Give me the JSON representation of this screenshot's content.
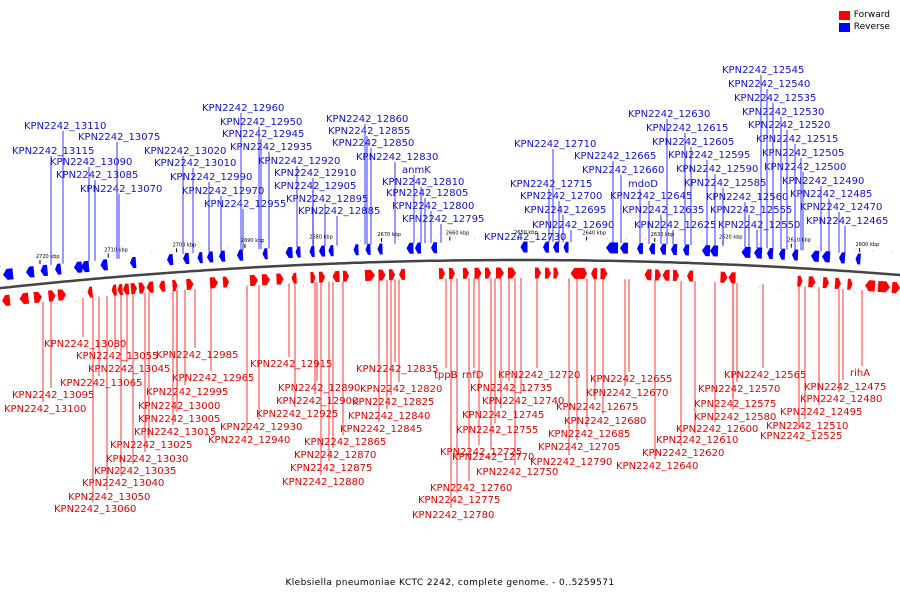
{
  "legend": {
    "forward_label": "Forward",
    "reverse_label": "Reverse",
    "forward_color": "#ff0000",
    "reverse_color": "#0000ff"
  },
  "caption": "Klebsiella pneumoniae KCTC 2242, complete genome. - 0..5259571",
  "ticks": [
    "2720 kbp",
    "2710 kbp",
    "2700 kbp",
    "2690 kbp",
    "2680 kbp",
    "2670 kbp",
    "2660 kbp",
    "2650 kbp",
    "2640 kbp",
    "2630 kbp",
    "2620 kbp",
    "2610 kbp",
    "2600 kbp"
  ],
  "reverse_labels": [
    "KPN2242_13110",
    "KPN2242_13075",
    "KPN2242_13115",
    "KPN2242_13090",
    "KPN2242_13085",
    "KPN2242_13070",
    "KPN2242_13020",
    "KPN2242_13010",
    "KPN2242_12990",
    "KPN2242_12970",
    "KPN2242_12955",
    "KPN2242_12960",
    "KPN2242_12950",
    "KPN2242_12945",
    "KPN2242_12935",
    "KPN2242_12920",
    "KPN2242_12910",
    "KPN2242_12905",
    "KPN2242_12895",
    "KPN2242_12885",
    "KPN2242_12860",
    "KPN2242_12855",
    "KPN2242_12850",
    "KPN2242_12830",
    "anmK",
    "KPN2242_12810",
    "KPN2242_12805",
    "KPN2242_12800",
    "KPN2242_12795",
    "KPN2242_12710",
    "KPN2242_12715",
    "KPN2242_12700",
    "KPN2242_12695",
    "KPN2242_12690",
    "KPN2242_12730",
    "KPN2242_12665",
    "KPN2242_12660",
    "mdoD",
    "KPN2242_12645",
    "KPN2242_12635",
    "KPN2242_12625",
    "KPN2242_12630",
    "KPN2242_12615",
    "KPN2242_12605",
    "KPN2242_12595",
    "KPN2242_12590",
    "KPN2242_12585",
    "KPN2242_12560",
    "KPN2242_12555",
    "KPN2242_12550",
    "KPN2242_12545",
    "KPN2242_12540",
    "KPN2242_12535",
    "KPN2242_12530",
    "KPN2242_12520",
    "KPN2242_12515",
    "KPN2242_12505",
    "KPN2242_12500",
    "KPN2242_12490",
    "KPN2242_12485",
    "KPN2242_12470",
    "KPN2242_12465"
  ],
  "forward_labels": [
    "KPN2242_13080",
    "KPN2242_13055",
    "KPN2242_13045",
    "KPN2242_13065",
    "KPN2242_13095",
    "KPN2242_13100",
    "KPN2242_12985",
    "KPN2242_12965",
    "KPN2242_12995",
    "KPN2242_13000",
    "KPN2242_13005",
    "KPN2242_13015",
    "KPN2242_13025",
    "KPN2242_13030",
    "KPN2242_13035",
    "KPN2242_13040",
    "KPN2242_13050",
    "KPN2242_13060",
    "KPN2242_12915",
    "KPN2242_12890",
    "KPN2242_12900",
    "KPN2242_12925",
    "KPN2242_12930",
    "KPN2242_12940",
    "KPN2242_12835",
    "KPN2242_12820",
    "KPN2242_12825",
    "KPN2242_12840",
    "KPN2242_12845",
    "KPN2242_12865",
    "KPN2242_12870",
    "KPN2242_12875",
    "KPN2242_12880",
    "tppB",
    "rnfD",
    "KPN2242_12720",
    "KPN2242_12735",
    "KPN2242_12740",
    "KPN2242_12745",
    "KPN2242_12755",
    "KPN2242_12770",
    "KPN2242_12790",
    "KPN2242_12725",
    "KPN2242_12750",
    "KPN2242_12760",
    "KPN2242_12775",
    "KPN2242_12780",
    "KPN2242_12655",
    "KPN2242_12670",
    "KPN2242_12675",
    "KPN2242_12680",
    "KPN2242_12685",
    "KPN2242_12705",
    "KPN2242_12565",
    "KPN2242_12570",
    "KPN2242_12575",
    "KPN2242_12580",
    "KPN2242_12600",
    "KPN2242_12610",
    "KPN2242_12620",
    "KPN2242_12640",
    "rihA",
    "KPN2242_12475",
    "KPN2242_12480",
    "KPN2242_12495",
    "KPN2242_12510",
    "KPN2242_12525"
  ]
}
